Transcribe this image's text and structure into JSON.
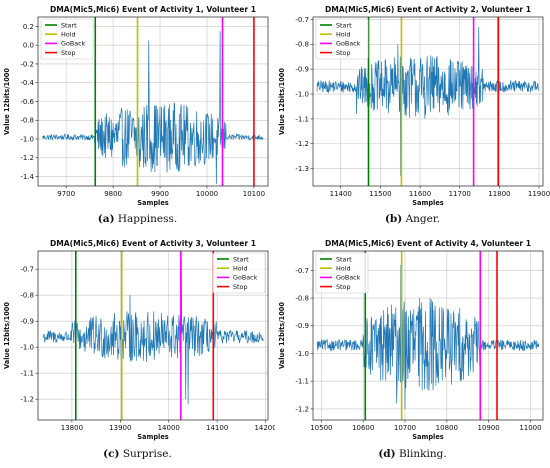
{
  "chart_data": [
    {
      "type": "line",
      "title": "DMA(Mic5,Mic6) Event of Activity 1, Volunteer 1",
      "xlabel": "Samples",
      "ylabel": "Value 12bits/1000",
      "xlim": [
        9640,
        10130
      ],
      "ylim": [
        -1.5,
        0.3
      ],
      "xticks": [
        9700,
        9800,
        9900,
        10000,
        10100
      ],
      "yticks": [
        -1.4,
        -1.2,
        -1.0,
        -0.8,
        -0.6,
        -0.4,
        -0.2,
        0.0,
        0.2
      ],
      "ytick_labels": [
        "-1.4",
        "-1.2",
        "-1.0",
        "-0.8",
        "-0.6",
        "-0.4",
        "-0.2",
        "0.0",
        "0.2"
      ],
      "grid": true,
      "legend_position": "top-left",
      "markers": [
        {
          "name": "Start",
          "x": 9762,
          "color": "#008000"
        },
        {
          "name": "Hold",
          "x": 9852,
          "color": "#bfbf00"
        },
        {
          "name": "GoBack",
          "x": 10033,
          "color": "#ff00ff"
        },
        {
          "name": "Stop",
          "x": 10100,
          "color": "#ff0000"
        }
      ],
      "signal": {
        "color": "#1f77b4",
        "baseline": -0.98,
        "quiet_amp": 0.03,
        "active_start": 9760,
        "active_end": 10040,
        "peak_amp": 0.38,
        "spikes": [
          [
            9876,
            0.05
          ],
          [
            10028,
            0.15
          ],
          [
            9856,
            -1.3
          ],
          [
            10020,
            -1.48
          ]
        ]
      },
      "caption_label": "(a)",
      "caption_text": "Happiness."
    },
    {
      "type": "line",
      "title": "DMA(Mic5,Mic6) Event of Activity 2, Volunteer 1",
      "xlabel": "Samples",
      "ylabel": "Value 12bits/1000",
      "xlim": [
        11330,
        11910
      ],
      "ylim": [
        -1.37,
        -0.69
      ],
      "xticks": [
        11400,
        11500,
        11600,
        11700,
        11800,
        11900
      ],
      "yticks": [
        -1.3,
        -1.2,
        -1.1,
        -1.0,
        -0.9,
        -0.8,
        -0.7
      ],
      "ytick_labels": [
        "-1.3",
        "-1.2",
        "-1.1",
        "-1.0",
        "-0.9",
        "-0.8",
        "-0.7"
      ],
      "grid": true,
      "legend_position": "top-left",
      "markers": [
        {
          "name": "Start",
          "x": 11470,
          "color": "#008000"
        },
        {
          "name": "Hold",
          "x": 11553,
          "color": "#bfbf00"
        },
        {
          "name": "GoBack",
          "x": 11735,
          "color": "#ff00ff"
        },
        {
          "name": "Stop",
          "x": 11797,
          "color": "#ff0000"
        }
      ],
      "signal": {
        "color": "#1f77b4",
        "baseline": -0.97,
        "quiet_amp": 0.025,
        "active_start": 11440,
        "active_end": 11760,
        "peak_amp": 0.13,
        "spikes": [
          [
            11544,
            -0.8
          ],
          [
            11748,
            -0.73
          ],
          [
            11551,
            -1.33
          ],
          [
            11440,
            -1.08
          ]
        ]
      },
      "caption_label": "(b)",
      "caption_text": "Anger."
    },
    {
      "type": "line",
      "title": "DMA(Mic5,Mic6) Event of Activity 3, Volunteer 1",
      "xlabel": "Samples",
      "ylabel": "Value 12bits/1000",
      "xlim": [
        13730,
        14205
      ],
      "ylim": [
        -1.28,
        -0.63
      ],
      "xticks": [
        13800,
        13900,
        14000,
        14100,
        14200
      ],
      "yticks": [
        -1.2,
        -1.1,
        -1.0,
        -0.9,
        -0.8,
        -0.7
      ],
      "ytick_labels": [
        "-1.2",
        "-1.1",
        "-1.0",
        "-0.9",
        "-0.8",
        "-0.7"
      ],
      "grid": true,
      "legend_position": "top-right",
      "markers": [
        {
          "name": "Start",
          "x": 13808,
          "color": "#008000"
        },
        {
          "name": "Hold",
          "x": 13903,
          "color": "#bfbf00"
        },
        {
          "name": "GoBack",
          "x": 14025,
          "color": "#ff00ff"
        },
        {
          "name": "Stop",
          "x": 14092,
          "color": "#ff0000"
        }
      ],
      "signal": {
        "color": "#1f77b4",
        "baseline": -0.96,
        "quiet_amp": 0.025,
        "active_start": 13800,
        "active_end": 14100,
        "peak_amp": 0.1,
        "spikes": [
          [
            14026,
            -0.66
          ],
          [
            14040,
            -1.22
          ],
          [
            14035,
            -1.2
          ],
          [
            13920,
            -0.8
          ]
        ]
      },
      "caption_label": "(c)",
      "caption_text": "Surprise."
    },
    {
      "type": "line",
      "title": "DMA(Mic5,Mic6) Event of Activity 4, Volunteer 1",
      "xlabel": "Samples",
      "ylabel": "Value 12bits/1000",
      "xlim": [
        10480,
        11030
      ],
      "ylim": [
        -1.24,
        -0.63
      ],
      "xticks": [
        10500,
        10600,
        10700,
        10800,
        10900,
        11000
      ],
      "yticks": [
        -1.2,
        -1.1,
        -1.0,
        -0.9,
        -0.8,
        -0.7
      ],
      "ytick_labels": [
        "-1.2",
        "-1.1",
        "-1.0",
        "-0.9",
        "-0.8",
        "-0.7"
      ],
      "grid": true,
      "legend_position": "top-left",
      "markers": [
        {
          "name": "Start",
          "x": 10605,
          "color": "#008000"
        },
        {
          "name": "Hold",
          "x": 10692,
          "color": "#bfbf00"
        },
        {
          "name": "GoBack",
          "x": 10880,
          "color": "#ff00ff"
        },
        {
          "name": "Stop",
          "x": 10920,
          "color": "#ff0000"
        }
      ],
      "signal": {
        "color": "#1f77b4",
        "baseline": -0.97,
        "quiet_amp": 0.02,
        "active_start": 10600,
        "active_end": 10880,
        "peak_amp": 0.17,
        "spikes": [
          [
            10690,
            -0.68
          ],
          [
            10700,
            -1.2
          ],
          [
            10760,
            -0.8
          ],
          [
            10680,
            -1.18
          ]
        ]
      },
      "caption_label": "(d)",
      "caption_text": "Blinking."
    }
  ]
}
